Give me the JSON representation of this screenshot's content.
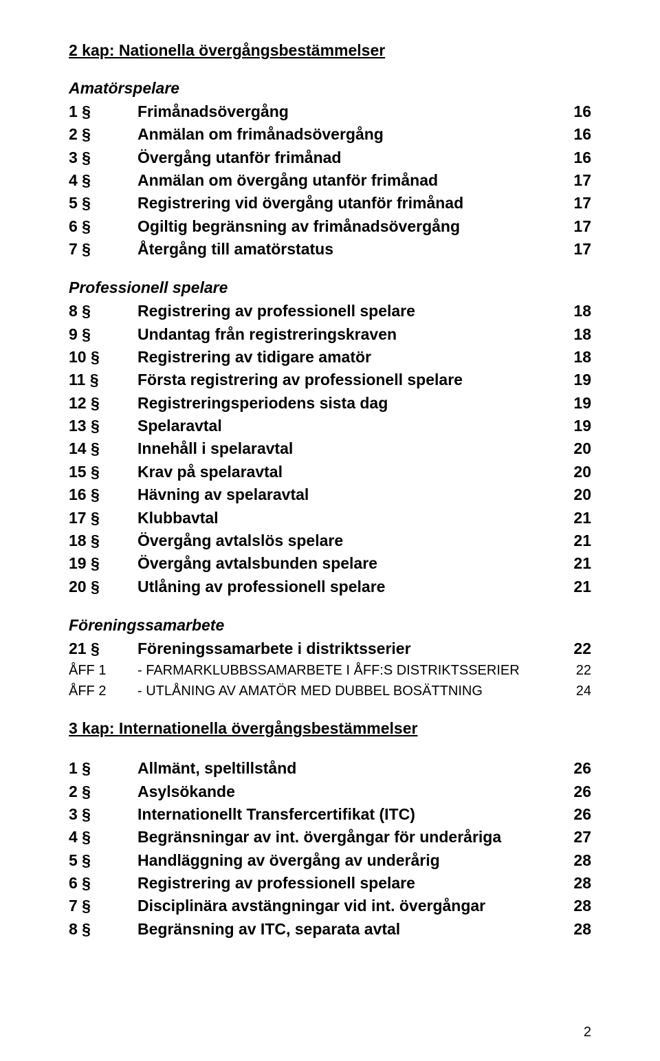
{
  "page_number": "2",
  "chapters": [
    {
      "heading": "2 kap: Nationella övergångsbestämmelser",
      "groups": [
        {
          "subheading": "Amatörspelare",
          "rows": [
            {
              "num": "1 §",
              "title": "Frimånadsövergång",
              "page": "16"
            },
            {
              "num": "2 §",
              "title": "Anmälan om frimånadsövergång",
              "page": "16"
            },
            {
              "num": "3 §",
              "title": "Övergång utanför frimånad",
              "page": "16"
            },
            {
              "num": "4 §",
              "title": "Anmälan om övergång utanför frimånad",
              "page": "17"
            },
            {
              "num": "5 §",
              "title": "Registrering vid övergång utanför frimånad",
              "page": "17"
            },
            {
              "num": "6 §",
              "title": "Ogiltig begränsning av frimånadsövergång",
              "page": "17"
            },
            {
              "num": "7 §",
              "title": "Återgång till amatörstatus",
              "page": "17"
            }
          ]
        },
        {
          "subheading": "Professionell spelare",
          "rows": [
            {
              "num": "8 §",
              "title": "Registrering av professionell spelare",
              "page": "18"
            },
            {
              "num": "9 §",
              "title": "Undantag från registreringskraven",
              "page": "18"
            },
            {
              "num": "10 §",
              "title": "Registrering av tidigare amatör",
              "page": "18"
            },
            {
              "num": "11 §",
              "title": "Första registrering av professionell spelare",
              "page": "19"
            },
            {
              "num": "12 §",
              "title": "Registreringsperiodens sista dag",
              "page": "19"
            },
            {
              "num": "13 §",
              "title": "Spelaravtal",
              "page": "19"
            },
            {
              "num": "14 §",
              "title": "Innehåll i spelaravtal",
              "page": "20"
            },
            {
              "num": "15 §",
              "title": "Krav på spelaravtal",
              "page": "20"
            },
            {
              "num": "16 §",
              "title": "Hävning av spelaravtal",
              "page": "20"
            },
            {
              "num": "17 §",
              "title": "Klubbavtal",
              "page": "21"
            },
            {
              "num": "18 §",
              "title": "Övergång avtalslös spelare",
              "page": "21"
            },
            {
              "num": "19 §",
              "title": "Övergång avtalsbunden spelare",
              "page": "21"
            },
            {
              "num": "20 §",
              "title": "Utlåning av professionell spelare",
              "page": "21"
            }
          ]
        },
        {
          "subheading": "Föreningssamarbete",
          "rows": [
            {
              "num": "21 §",
              "title": "Föreningssamarbete i distriktsserier",
              "page": "22"
            },
            {
              "num": "ÅFF 1",
              "title": "- FARMARKLUBBSSAMARBETE I ÅFF:S DISTRIKTSSERIER",
              "page": "22",
              "small": true
            },
            {
              "num": "ÅFF 2",
              "title": "- UTLÅNING AV AMATÖR MED DUBBEL BOSÄTTNING",
              "page": "24",
              "small": true
            }
          ]
        }
      ]
    },
    {
      "heading": "3 kap: Internationella övergångsbestämmelser",
      "groups": [
        {
          "subheading": "",
          "rows": [
            {
              "num": "1 §",
              "title": "Allmänt, speltillstånd",
              "page": "26"
            },
            {
              "num": "2 §",
              "title": "Asylsökande",
              "page": "26"
            },
            {
              "num": "3 §",
              "title": "Internationellt Transfercertifikat (ITC)",
              "page": "26"
            },
            {
              "num": "4 §",
              "title": "Begränsningar av int. övergångar för underåriga",
              "page": "27"
            },
            {
              "num": "5 §",
              "title": "Handläggning av övergång av underårig",
              "page": "28"
            },
            {
              "num": "6 §",
              "title": "Registrering av professionell spelare",
              "page": "28"
            },
            {
              "num": "7 §",
              "title": "Disciplinära avstängningar vid int. övergångar",
              "page": "28"
            },
            {
              "num": "8 §",
              "title": "Begränsning av ITC, separata avtal",
              "page": "28"
            }
          ]
        }
      ]
    }
  ]
}
